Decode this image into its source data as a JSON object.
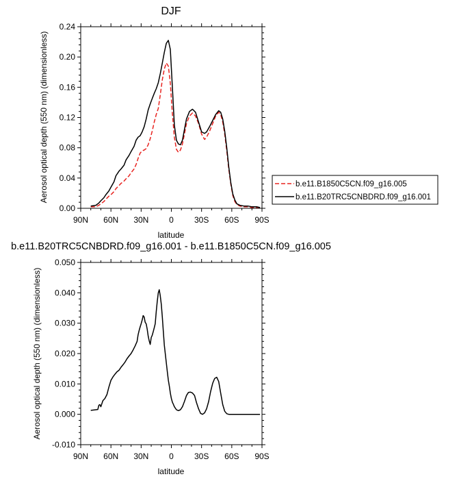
{
  "chart_data": [
    {
      "type": "line",
      "title": "DJF",
      "xlabel": "latitude",
      "ylabel": "Aerosol optical depth (550 nm) (dimensionless)",
      "xlim": [
        90,
        -90
      ],
      "ylim": [
        0,
        0.24
      ],
      "x_ticks": [
        90,
        60,
        30,
        0,
        -30,
        -60,
        -90
      ],
      "x_tick_labels": [
        "90N",
        "60N",
        "30N",
        "0",
        "30S",
        "60S",
        "90S"
      ],
      "y_ticks": [
        0,
        0.04,
        0.08,
        0.12,
        0.16,
        0.2,
        0.24
      ],
      "y_tick_labels": [
        "0.00",
        "0.04",
        "0.08",
        "0.12",
        "0.16",
        "0.20",
        "0.24"
      ],
      "legend_position": "right",
      "grid": false,
      "series": [
        {
          "name": "b.e11.B1850C5CN.f09_g16.005",
          "color": "#e8231f",
          "dash": "dashed",
          "x": [
            80,
            75,
            72,
            70,
            67,
            65,
            62,
            60,
            57,
            55,
            52,
            50,
            47,
            45,
            42,
            40,
            37,
            35,
            33,
            31,
            29,
            27,
            25,
            23,
            21,
            19,
            17,
            15,
            13,
            11,
            9,
            7,
            5,
            3,
            1,
            -1,
            -3,
            -5,
            -7,
            -9,
            -11,
            -13,
            -15,
            -18,
            -21,
            -24,
            -27,
            -30,
            -33,
            -35,
            -38,
            -41,
            -44,
            -47,
            -49,
            -51,
            -53,
            -55,
            -57,
            -59,
            -61,
            -63,
            -65,
            -68,
            -72,
            -76,
            -80,
            -85,
            -88
          ],
          "values": [
            0.002,
            0.002,
            0.004,
            0.006,
            0.009,
            0.012,
            0.016,
            0.018,
            0.022,
            0.026,
            0.03,
            0.033,
            0.036,
            0.039,
            0.043,
            0.047,
            0.052,
            0.058,
            0.066,
            0.073,
            0.076,
            0.077,
            0.079,
            0.084,
            0.092,
            0.102,
            0.114,
            0.124,
            0.132,
            0.15,
            0.17,
            0.184,
            0.192,
            0.188,
            0.165,
            0.125,
            0.094,
            0.078,
            0.074,
            0.077,
            0.085,
            0.098,
            0.112,
            0.122,
            0.126,
            0.122,
            0.112,
            0.098,
            0.091,
            0.094,
            0.102,
            0.112,
            0.122,
            0.127,
            0.124,
            0.114,
            0.098,
            0.076,
            0.052,
            0.032,
            0.017,
            0.009,
            0.005,
            0.003,
            0.002,
            0.002,
            0.001,
            0.001,
            0.001
          ]
        },
        {
          "name": "b.e11.B20TRC5CNBDRD.f09_g16.001",
          "color": "#000000",
          "dash": "solid",
          "x": [
            80,
            75,
            72,
            70,
            67,
            65,
            62,
            60,
            57,
            55,
            52,
            50,
            47,
            45,
            42,
            40,
            37,
            35,
            33,
            31,
            29,
            27,
            25,
            23,
            21,
            19,
            17,
            15,
            13,
            11,
            9,
            7,
            5,
            3,
            1,
            -1,
            -3,
            -5,
            -7,
            -9,
            -11,
            -13,
            -15,
            -18,
            -21,
            -24,
            -27,
            -30,
            -33,
            -35,
            -38,
            -41,
            -44,
            -47,
            -49,
            -51,
            -53,
            -55,
            -57,
            -59,
            -61,
            -63,
            -65,
            -68,
            -72,
            -76,
            -80,
            -85,
            -88
          ],
          "values": [
            0.003,
            0.004,
            0.007,
            0.01,
            0.014,
            0.018,
            0.023,
            0.028,
            0.035,
            0.043,
            0.049,
            0.052,
            0.057,
            0.064,
            0.07,
            0.075,
            0.082,
            0.09,
            0.094,
            0.096,
            0.101,
            0.108,
            0.118,
            0.13,
            0.138,
            0.145,
            0.152,
            0.158,
            0.166,
            0.178,
            0.192,
            0.206,
            0.218,
            0.222,
            0.21,
            0.16,
            0.11,
            0.09,
            0.085,
            0.084,
            0.09,
            0.104,
            0.118,
            0.128,
            0.131,
            0.127,
            0.114,
            0.101,
            0.099,
            0.101,
            0.108,
            0.116,
            0.124,
            0.129,
            0.127,
            0.118,
            0.102,
            0.08,
            0.055,
            0.034,
            0.019,
            0.011,
            0.006,
            0.004,
            0.003,
            0.003,
            0.002,
            0.002,
            0.001
          ]
        }
      ]
    },
    {
      "type": "line",
      "title": "b.e11.B20TRC5CNBDRD.f09_g16.001 - b.e11.B1850C5CN.f09_g16.005",
      "xlabel": "latitude",
      "ylabel": "Aerosol optical depth (550 nm) (dimensionless)",
      "xlim": [
        90,
        -90
      ],
      "ylim": [
        -0.01,
        0.05
      ],
      "x_ticks": [
        90,
        60,
        30,
        0,
        -30,
        -60,
        -90
      ],
      "x_tick_labels": [
        "90N",
        "60N",
        "30N",
        "0",
        "30S",
        "60S",
        "90S"
      ],
      "y_ticks": [
        -0.01,
        0,
        0.01,
        0.02,
        0.03,
        0.04,
        0.05
      ],
      "y_tick_labels": [
        "-0.010",
        "0.000",
        "0.010",
        "0.020",
        "0.030",
        "0.040",
        "0.050"
      ],
      "grid": false,
      "series": [
        {
          "color": "#000000",
          "dash": "solid",
          "x": [
            80,
            75,
            73,
            72,
            71,
            70,
            68,
            66,
            64,
            62,
            60,
            58,
            56,
            54,
            52,
            50,
            48,
            46,
            44,
            42,
            40,
            38,
            36,
            34,
            33,
            32,
            31,
            30,
            29,
            28,
            27,
            26,
            25,
            24,
            23,
            22,
            21,
            20,
            19,
            18,
            17,
            16,
            15,
            14,
            13,
            12,
            11,
            10,
            9,
            8,
            7,
            6,
            5,
            4,
            3,
            2,
            1,
            0,
            -1,
            -2,
            -3,
            -5,
            -7,
            -9,
            -11,
            -13,
            -15,
            -17,
            -19,
            -21,
            -23,
            -25,
            -27,
            -29,
            -31,
            -33,
            -35,
            -37,
            -39,
            -41,
            -43,
            -45,
            -47,
            -49,
            -51,
            -53,
            -55,
            -57,
            -59,
            -61,
            -63,
            -65,
            -67,
            -70,
            -75,
            -80,
            -85,
            -88
          ],
          "values": [
            0.0013,
            0.0015,
            0.0016,
            0.003,
            0.0032,
            0.0025,
            0.0045,
            0.0052,
            0.0065,
            0.009,
            0.0112,
            0.0123,
            0.0132,
            0.014,
            0.0145,
            0.0155,
            0.0163,
            0.0172,
            0.0183,
            0.0192,
            0.02,
            0.0212,
            0.0225,
            0.024,
            0.0262,
            0.0276,
            0.0288,
            0.0298,
            0.031,
            0.0325,
            0.032,
            0.0303,
            0.0298,
            0.028,
            0.0258,
            0.0242,
            0.023,
            0.0253,
            0.026,
            0.0272,
            0.0285,
            0.0298,
            0.0338,
            0.0372,
            0.04,
            0.041,
            0.039,
            0.0362,
            0.032,
            0.0275,
            0.0228,
            0.0198,
            0.017,
            0.014,
            0.0112,
            0.0092,
            0.007,
            0.0052,
            0.004,
            0.0033,
            0.0025,
            0.0015,
            0.0012,
            0.0015,
            0.0025,
            0.0042,
            0.0062,
            0.0072,
            0.0073,
            0.007,
            0.0062,
            0.0038,
            0.0018,
            0.0003,
            0.0,
            0.0005,
            0.0018,
            0.0042,
            0.0075,
            0.0102,
            0.0118,
            0.0122,
            0.0108,
            0.007,
            0.0032,
            0.001,
            0.0002,
            0.0,
            0.0,
            0.0,
            0.0,
            0.0,
            0.0,
            0.0,
            0.0,
            0.0,
            0.0,
            0.0
          ]
        }
      ]
    }
  ]
}
